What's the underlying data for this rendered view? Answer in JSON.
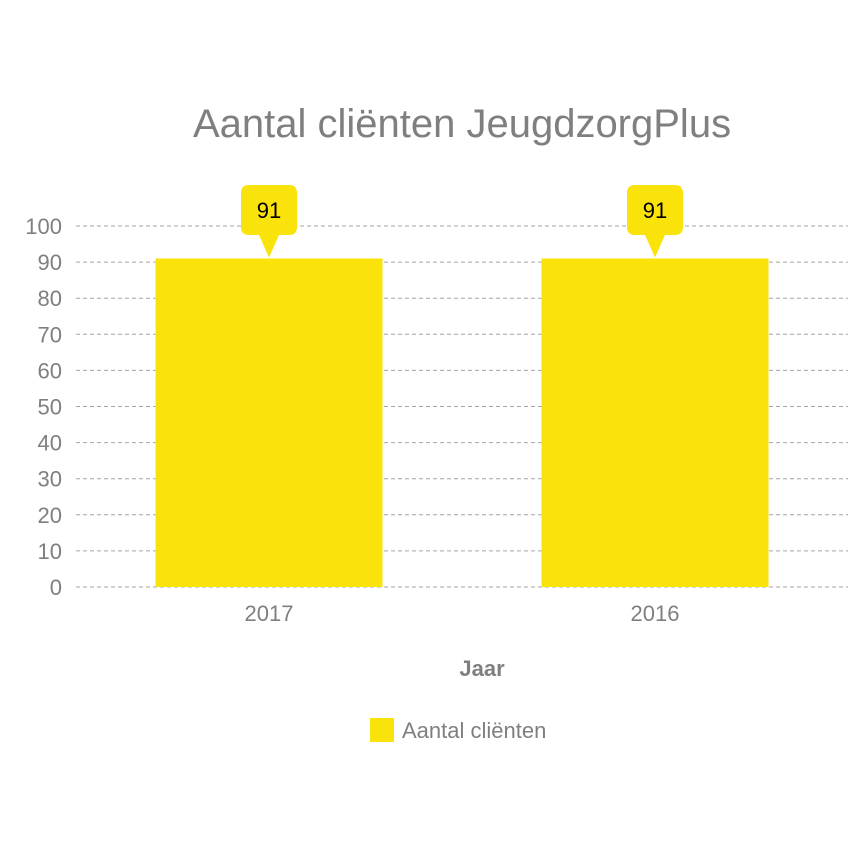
{
  "chart_data": {
    "type": "bar",
    "title": "Aantal cliënten JeugdzorgPlus",
    "xlabel": "Jaar",
    "ylabel": "",
    "categories": [
      "2017",
      "2016"
    ],
    "series": [
      {
        "name": "Aantal cliënten",
        "values": [
          91,
          91
        ],
        "color": "#fae20b"
      }
    ],
    "data_labels": [
      "91",
      "91"
    ],
    "yticks": [
      "0",
      "10",
      "20",
      "30",
      "40",
      "50",
      "60",
      "70",
      "80",
      "90",
      "100"
    ],
    "ylim": [
      0,
      100
    ],
    "grid": true,
    "legend": "bottom"
  }
}
